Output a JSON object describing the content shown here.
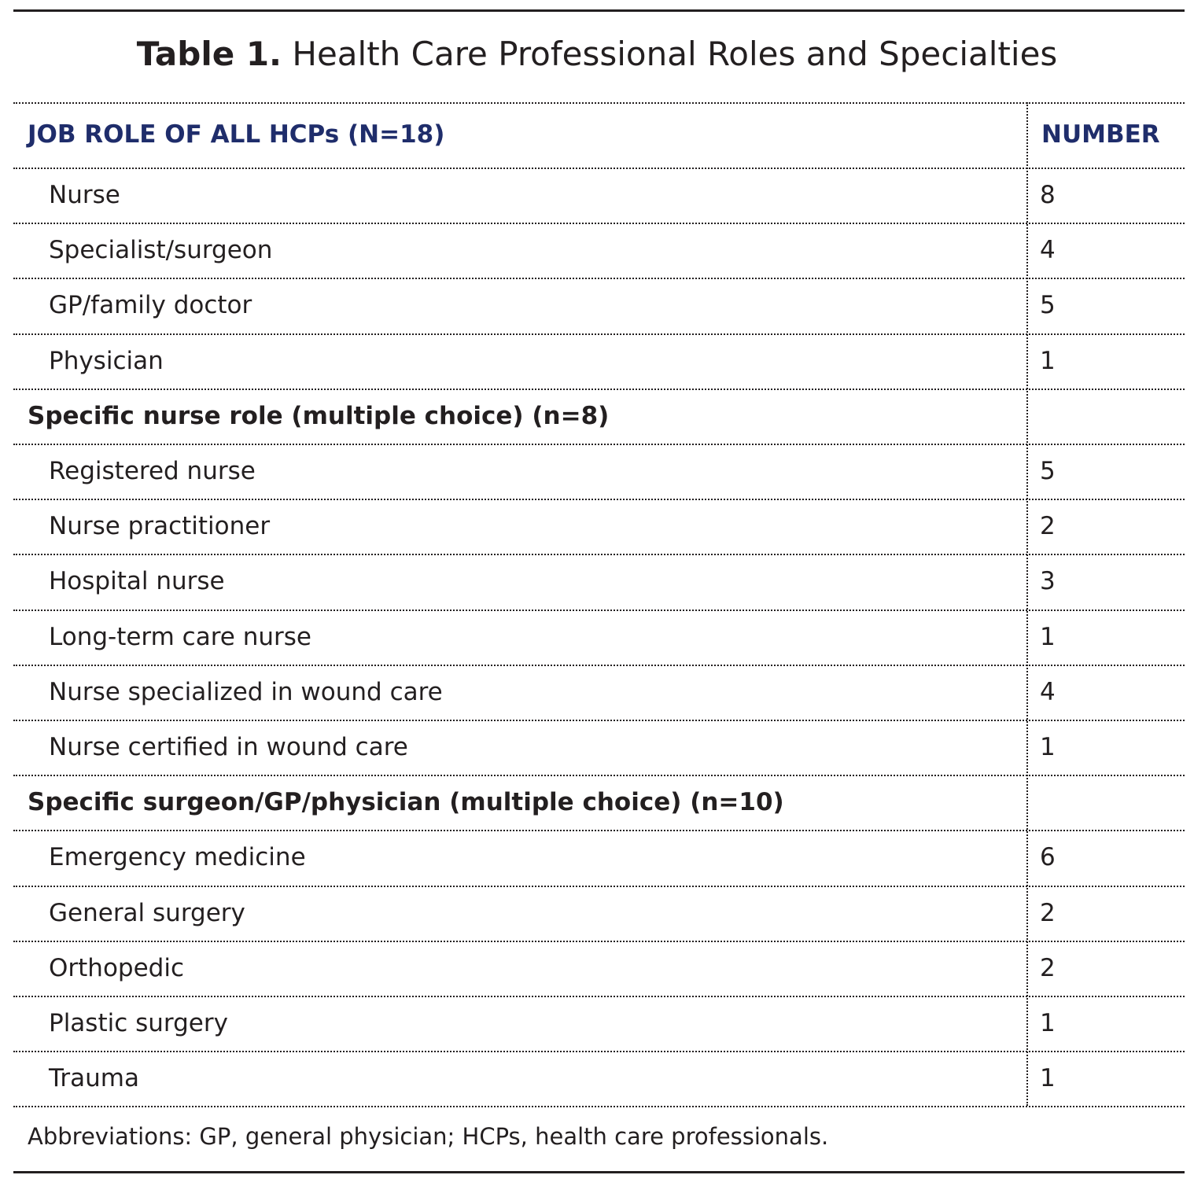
{
  "title": {
    "label": "Table 1.",
    "text": "Health Care Professional Roles and Specialties"
  },
  "table": {
    "header": [
      "JOB ROLE OF ALL HCPs (N=18)",
      "NUMBER"
    ],
    "rows": [
      {
        "label": "Nurse",
        "number": 8
      },
      {
        "label": "Specialist/surgeon",
        "number": 4
      },
      {
        "label": "GP/family doctor",
        "number": 5
      },
      {
        "label": "Physician",
        "number": 1
      },
      {
        "section": "Specific nurse role (multiple choice) (n=8)"
      },
      {
        "label": "Registered nurse",
        "number": 5
      },
      {
        "label": "Nurse practitioner",
        "number": 2
      },
      {
        "label": "Hospital nurse",
        "number": 3
      },
      {
        "label": "Long-term care nurse",
        "number": 1
      },
      {
        "label": "Nurse specialized in wound care",
        "number": 4
      },
      {
        "label": "Nurse certified in wound care",
        "number": 1
      },
      {
        "section": "Specific surgeon/GP/physician (multiple choice) (n=10)"
      },
      {
        "label": "Emergency medicine",
        "number": 6
      },
      {
        "label": "General surgery",
        "number": 2
      },
      {
        "label": "Orthopedic",
        "number": 2
      },
      {
        "label": "Plastic surgery",
        "number": 1
      },
      {
        "label": "Trauma",
        "number": 1
      }
    ]
  },
  "footnote": "Abbreviations: GP, general physician; HCPs, health care professionals."
}
